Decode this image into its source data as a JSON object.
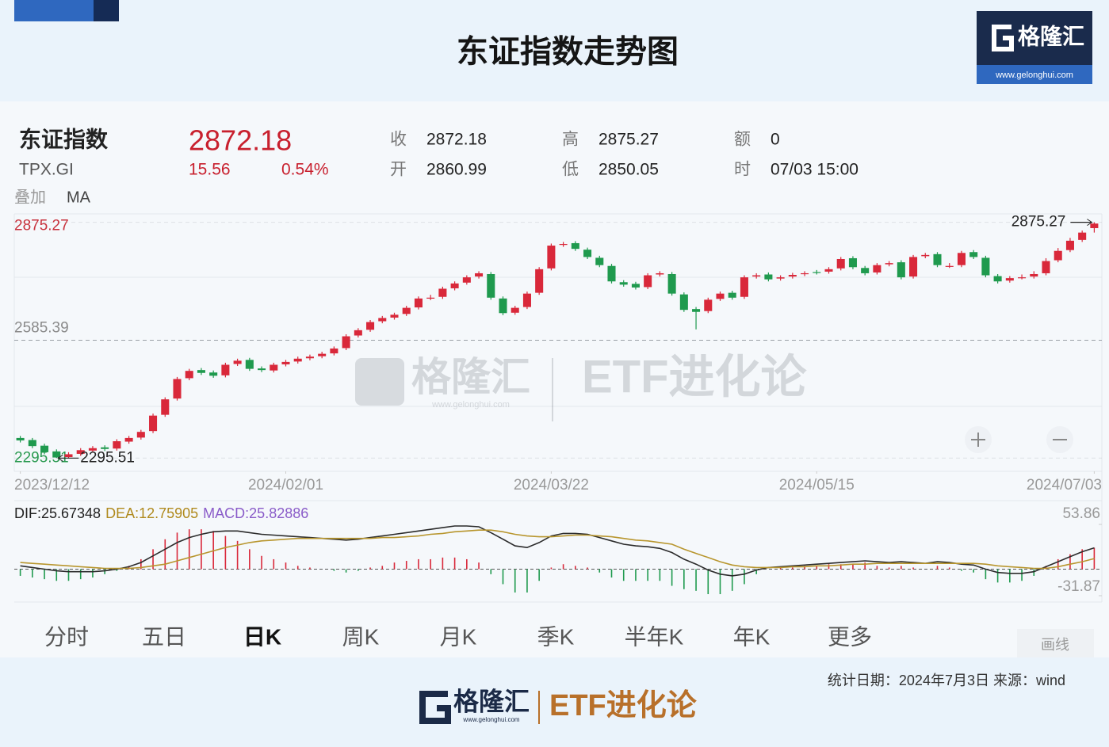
{
  "page": {
    "title": "东证指数走势图",
    "logo": {
      "name": "格隆汇",
      "url": "www.gelonghui.com"
    },
    "quote": {
      "name": "东证指数",
      "code": "TPX.GI",
      "price": "2872.18",
      "change": "15.56",
      "change_pct": "0.54%",
      "fields": [
        {
          "label": "收",
          "value": "2872.18"
        },
        {
          "label": "高",
          "value": "2875.27"
        },
        {
          "label": "额",
          "value": "0"
        },
        {
          "label": "开",
          "value": "2860.99"
        },
        {
          "label": "低",
          "value": "2850.05"
        },
        {
          "label": "时",
          "value": "07/03 15:00"
        }
      ],
      "overlay": "叠加",
      "indicator": "MA"
    },
    "watermark": {
      "logo": "格隆汇",
      "url": "www.gelonghui.com",
      "brand": "ETF进化论"
    },
    "tabs": [
      "分时",
      "五日",
      "日K",
      "周K",
      "月K",
      "季K",
      "半年K",
      "年K",
      "更多"
    ],
    "draw_button": "画线",
    "footer": {
      "note": "统计日期：2024年7月3日 来源：wind",
      "logo": "格隆汇",
      "url": "www.gelonghui.com",
      "brand": "ETF进化论"
    }
  },
  "chart_data": [
    {
      "type": "candlestick",
      "up_color": "#d9283a",
      "down_color": "#1f9a4e",
      "ylim": [
        2263,
        2896
      ],
      "yticks": [
        2295.51,
        2585.39,
        2875.27
      ],
      "ytick_colors": [
        "#2a9a50",
        "#8a8a8a",
        "#c8313c"
      ],
      "xlim": [
        -0.5,
        89.5
      ],
      "xticks": [
        {
          "value": 0,
          "label": "2023/12/12"
        },
        {
          "value": 22,
          "label": "2024/02/01"
        },
        {
          "value": 44,
          "label": "2024/03/22"
        },
        {
          "value": 66,
          "label": "2024/05/15"
        },
        {
          "value": 89,
          "label": "2024/07/03"
        }
      ],
      "annotations": [
        {
          "text": "2875.27",
          "index": 89
        },
        {
          "text": "2295.51",
          "index": 3
        }
      ],
      "open": [
        2345,
        2340,
        2326,
        2312,
        2298,
        2306,
        2314,
        2322,
        2319,
        2336,
        2346,
        2362,
        2402,
        2442,
        2492,
        2512,
        2506,
        2499,
        2527,
        2537,
        2516,
        2511,
        2526,
        2533,
        2541,
        2546,
        2553,
        2566,
        2597,
        2611,
        2632,
        2641,
        2650,
        2666,
        2689,
        2692,
        2713,
        2727,
        2742,
        2748,
        2688,
        2653,
        2667,
        2702,
        2762,
        2820,
        2824,
        2808,
        2788,
        2768,
        2728,
        2724,
        2716,
        2747,
        2748,
        2698,
        2662,
        2657,
        2687,
        2702,
        2692,
        2742,
        2747,
        2737,
        2742,
        2748,
        2753,
        2754,
        2762,
        2787,
        2763,
        2752,
        2772,
        2777,
        2742,
        2792,
        2797,
        2768,
        2770,
        2802,
        2788,
        2743,
        2732,
        2740,
        2742,
        2750,
        2782,
        2807,
        2832,
        2860.99
      ],
      "high": [
        2350,
        2345,
        2331,
        2317,
        2310,
        2320,
        2325,
        2327,
        2342,
        2350,
        2365,
        2405,
        2445,
        2495,
        2515,
        2517,
        2511,
        2530,
        2540,
        2542,
        2521,
        2530,
        2537,
        2545,
        2550,
        2557,
        2570,
        2600,
        2615,
        2635,
        2645,
        2653,
        2670,
        2693,
        2697,
        2717,
        2730,
        2745,
        2755,
        2753,
        2693,
        2670,
        2705,
        2765,
        2823,
        2827,
        2829,
        2813,
        2793,
        2773,
        2733,
        2729,
        2750,
        2755,
        2753,
        2703,
        2667,
        2690,
        2705,
        2707,
        2745,
        2750,
        2752,
        2745,
        2751,
        2755,
        2758,
        2765,
        2790,
        2792,
        2768,
        2775,
        2780,
        2782,
        2795,
        2800,
        2802,
        2775,
        2805,
        2807,
        2793,
        2748,
        2743,
        2747,
        2755,
        2787,
        2812,
        2837,
        2855,
        2875.27
      ],
      "low": [
        2334,
        2320,
        2305,
        2295.51,
        2296,
        2301,
        2309,
        2313,
        2314,
        2331,
        2341,
        2357,
        2397,
        2437,
        2487,
        2500,
        2493,
        2494,
        2522,
        2510,
        2507,
        2506,
        2521,
        2528,
        2536,
        2541,
        2548,
        2561,
        2592,
        2606,
        2627,
        2636,
        2645,
        2661,
        2684,
        2687,
        2708,
        2722,
        2737,
        2685,
        2647,
        2648,
        2662,
        2697,
        2757,
        2815,
        2805,
        2785,
        2765,
        2725,
        2717,
        2710,
        2711,
        2742,
        2695,
        2655,
        2612,
        2652,
        2682,
        2685,
        2687,
        2737,
        2730,
        2732,
        2737,
        2743,
        2747,
        2749,
        2757,
        2760,
        2745,
        2747,
        2767,
        2735,
        2737,
        2787,
        2765,
        2763,
        2765,
        2785,
        2740,
        2725,
        2727,
        2735,
        2737,
        2745,
        2777,
        2802,
        2827,
        2850.05
      ],
      "close": [
        2339,
        2325,
        2310,
        2297,
        2305,
        2315,
        2320,
        2318,
        2337,
        2345,
        2360,
        2400,
        2440,
        2490,
        2510,
        2505,
        2498,
        2525,
        2535,
        2515,
        2512,
        2525,
        2532,
        2540,
        2545,
        2552,
        2565,
        2595,
        2610,
        2630,
        2640,
        2648,
        2665,
        2688,
        2690,
        2712,
        2725,
        2740,
        2750,
        2690,
        2652,
        2665,
        2700,
        2760,
        2818,
        2822,
        2810,
        2790,
        2770,
        2730,
        2722,
        2715,
        2745,
        2750,
        2700,
        2660,
        2655,
        2685,
        2700,
        2690,
        2740,
        2745,
        2735,
        2740,
        2746,
        2750,
        2752,
        2760,
        2785,
        2765,
        2750,
        2770,
        2775,
        2740,
        2790,
        2795,
        2770,
        2768,
        2800,
        2790,
        2745,
        2730,
        2738,
        2740,
        2748,
        2780,
        2805,
        2830,
        2850,
        2872.18
      ]
    },
    {
      "type": "macd",
      "ylim": [
        -31.87,
        53.86
      ],
      "yticks": [
        -31.87,
        53.86
      ],
      "xlim": [
        -0.5,
        89.5
      ],
      "up_color": "#d9283a",
      "down_color": "#1f9a4e",
      "series": [
        {
          "name": "DIF",
          "legend": "DIF:25.67348",
          "color": "#2b2b2b",
          "legend_color": "#222222",
          "values": [
            4,
            2,
            0,
            -2,
            -3,
            -3,
            -3,
            -2,
            0,
            3,
            8,
            16,
            24,
            32,
            38,
            42,
            45,
            46,
            46,
            44,
            42,
            41,
            40,
            39,
            38,
            37,
            36,
            35,
            36,
            38,
            40,
            42,
            44,
            46,
            48,
            50,
            52,
            52,
            51,
            44,
            36,
            28,
            26,
            32,
            40,
            43,
            43,
            42,
            38,
            34,
            30,
            28,
            27,
            25,
            20,
            12,
            6,
            -1,
            -6,
            -8,
            -6,
            -1,
            2,
            3,
            4,
            5,
            6,
            7,
            8,
            9,
            10,
            9,
            8,
            9,
            8,
            7,
            9,
            8,
            6,
            5,
            0,
            -4,
            -5,
            -5,
            -3,
            3,
            9,
            15,
            21,
            25.67348
          ]
        },
        {
          "name": "DEA",
          "legend": "DEA:12.75905",
          "color": "#b8962e",
          "legend_color": "#b08a1e",
          "values": [
            8,
            7,
            6,
            5,
            4,
            3,
            2,
            1,
            1,
            1,
            2,
            4,
            6,
            10,
            14,
            18,
            22,
            26,
            29,
            32,
            34,
            35,
            36,
            37,
            37,
            37,
            37,
            37,
            37,
            37,
            38,
            38,
            39,
            40,
            42,
            43,
            45,
            46,
            47,
            47,
            45,
            42,
            40,
            39,
            39,
            40,
            41,
            41,
            40,
            39,
            37,
            35,
            34,
            32,
            30,
            24,
            19,
            14,
            9,
            5,
            3,
            2,
            2,
            2,
            3,
            3,
            4,
            4,
            5,
            6,
            6,
            7,
            7,
            7,
            7,
            7,
            7,
            7,
            7,
            7,
            6,
            4,
            3,
            2,
            1,
            1,
            3,
            6,
            9,
            12.75905
          ]
        },
        {
          "name": "MACD",
          "legend": "MACD:25.82886",
          "color": "histogram",
          "legend_color": "#8a5cc9",
          "values": [
            -8,
            -10,
            -12,
            -14,
            -14,
            -12,
            -10,
            -6,
            -2,
            4,
            12,
            24,
            36,
            44,
            48,
            48,
            46,
            40,
            34,
            24,
            16,
            12,
            8,
            4,
            2,
            0,
            -2,
            -4,
            -2,
            2,
            4,
            8,
            10,
            12,
            12,
            14,
            14,
            12,
            8,
            -6,
            -18,
            -28,
            -28,
            -14,
            2,
            6,
            4,
            2,
            -4,
            -10,
            -14,
            -14,
            -14,
            -14,
            -20,
            -24,
            -26,
            -30,
            -30,
            -26,
            -18,
            -6,
            0,
            2,
            2,
            4,
            4,
            6,
            6,
            6,
            8,
            4,
            2,
            4,
            2,
            0,
            4,
            2,
            -2,
            -4,
            -12,
            -16,
            -16,
            -14,
            -8,
            4,
            12,
            18,
            24,
            25.82886
          ]
        }
      ]
    }
  ]
}
